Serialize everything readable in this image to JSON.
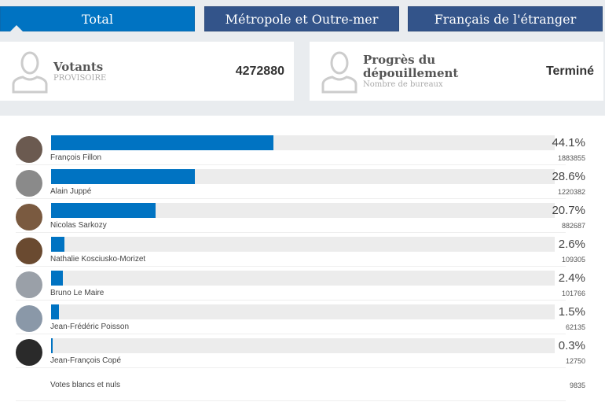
{
  "tabs": [
    {
      "label": "Total",
      "active": true
    },
    {
      "label": "Métropole et Outre-mer"
    },
    {
      "label": "Français de l'étranger"
    }
  ],
  "votants": {
    "title": "Votants",
    "sub": "PROVISOIRE",
    "value": "4272880",
    "icon": "person-icon"
  },
  "progres": {
    "title": "Progrès du dépouillement",
    "sub": "Nombre de bureaux",
    "value": "Terminé",
    "icon": "person-icon"
  },
  "colors": {
    "accent": "#0073c2",
    "tab": "#33548a"
  },
  "candidates": [
    {
      "name": "François Fillon",
      "pct": "44.1%",
      "value": 44.1,
      "votes": "1883855"
    },
    {
      "name": "Alain Juppé",
      "pct": "28.6%",
      "value": 28.6,
      "votes": "1220382"
    },
    {
      "name": "Nicolas Sarkozy",
      "pct": "20.7%",
      "value": 20.7,
      "votes": "882687"
    },
    {
      "name": "Nathalie Kosciusko-Morizet",
      "pct": "2.6%",
      "value": 2.6,
      "votes": "109305"
    },
    {
      "name": "Bruno Le Maire",
      "pct": "2.4%",
      "value": 2.4,
      "votes": "101766"
    },
    {
      "name": "Jean-Frédéric Poisson",
      "pct": "1.5%",
      "value": 1.5,
      "votes": "62135"
    },
    {
      "name": "Jean-François Copé",
      "pct": "0.3%",
      "value": 0.3,
      "votes": "12750"
    }
  ],
  "blancs": {
    "label": "Votes blancs et nuls",
    "value": "9835"
  }
}
